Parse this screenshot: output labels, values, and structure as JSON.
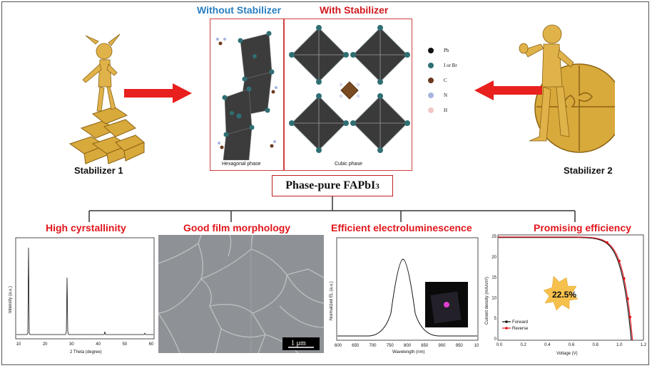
{
  "header": {
    "without_label": "Without Stabilizer",
    "with_label": "With Stabilizer"
  },
  "structures": {
    "hexagonal_caption": "Hexagonal phase",
    "cubic_caption": "Cubic phase"
  },
  "legend": [
    {
      "symbol": "Pb",
      "color": "#111111"
    },
    {
      "symbol": "I or Br",
      "color": "#2f6f73"
    },
    {
      "symbol": "C",
      "color": "#6b3a1e"
    },
    {
      "symbol": "N",
      "color": "#a8b4e0"
    },
    {
      "symbol": "H",
      "color": "#f2c6c6"
    }
  ],
  "stabilizer1": "Stabilizer 1",
  "stabilizer2": "Stabilizer 2",
  "center_title": "Phase-pure FAPbI",
  "center_title_sub": "3",
  "properties": {
    "p1": "High cyrstallinity",
    "p2": "Good film morphology",
    "p3": "Efficient electroluminescence",
    "p4": "Promising efficiency"
  },
  "xrd": {
    "ylabel": "Intensity (a.u.)",
    "xlabel": "2 Theta (degree)",
    "xticks": [
      "10",
      "20",
      "30",
      "40",
      "50",
      "60"
    ]
  },
  "sem": {
    "scale": "1 μm"
  },
  "el": {
    "ylabel": "Normalized EL (a.u.)",
    "xlabel": "Wavelength (nm)",
    "xticks": [
      "600",
      "650",
      "700",
      "750",
      "800",
      "850",
      "900",
      "950",
      "10"
    ]
  },
  "jv": {
    "ylabel": "Current density (mA/cm²)",
    "xlabel": "Voltage (V)",
    "xticks": [
      "0.0",
      "0.2",
      "0.4",
      "0.6",
      "0.8",
      "1.0",
      "1.2"
    ],
    "yticks": [
      "0",
      "5",
      "10",
      "15",
      "20",
      "25"
    ],
    "legend_forward": "Forward",
    "legend_reverse": "Reverse",
    "efficiency": "22.5%"
  }
}
